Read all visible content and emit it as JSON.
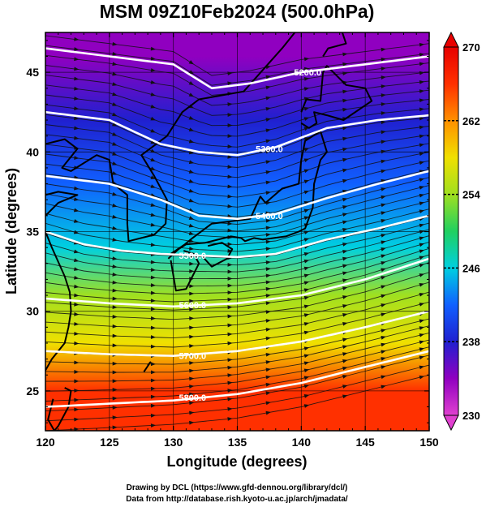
{
  "chart_data": {
    "type": "heatmap",
    "title": "MSM 09Z10Feb2024 (500.0hPa)",
    "xlabel": "Longitude (degrees)",
    "ylabel": "Latitude  (degrees)",
    "xlim": [
      120,
      150
    ],
    "ylim": [
      22.5,
      47.5
    ],
    "x_ticks": [
      120,
      125,
      130,
      135,
      140,
      145,
      150
    ],
    "y_ticks": [
      25,
      30,
      35,
      40,
      45
    ],
    "colorbar": {
      "range": [
        230,
        270
      ],
      "ticks": [
        230,
        238,
        246,
        254,
        262,
        270
      ],
      "extend": "both",
      "colors": [
        "#e040d0",
        "#9000c0",
        "#2020d0",
        "#1060ff",
        "#00d0e0",
        "#20d060",
        "#a0e020",
        "#f0e000",
        "#ff9000",
        "#ff3000",
        "#e80000"
      ]
    },
    "temperature_gradient": {
      "direction": "increasing-southward",
      "approx_bands": [
        {
          "lat": 46,
          "value": 232
        },
        {
          "lat": 42,
          "value": 236
        },
        {
          "lat": 38,
          "value": 241
        },
        {
          "lat": 34,
          "value": 247
        },
        {
          "lat": 31,
          "value": 252
        },
        {
          "lat": 28,
          "value": 258
        },
        {
          "lat": 25,
          "value": 264
        }
      ]
    },
    "height_contours": [
      {
        "label": "5200.0",
        "points": [
          [
            120,
            46.5
          ],
          [
            125,
            46
          ],
          [
            130,
            45.5
          ],
          [
            133,
            44
          ],
          [
            136,
            44.3
          ],
          [
            140,
            45
          ],
          [
            145,
            45.5
          ],
          [
            150,
            46
          ]
        ]
      },
      {
        "label": "5300.0",
        "points": [
          [
            120,
            42.5
          ],
          [
            125,
            42
          ],
          [
            129,
            40.5
          ],
          [
            132,
            40
          ],
          [
            135,
            39.8
          ],
          [
            138,
            40.3
          ],
          [
            142,
            41.5
          ],
          [
            146,
            42
          ],
          [
            150,
            42.3
          ]
        ]
      },
      {
        "label": "5400.0",
        "points": [
          [
            120,
            38.5
          ],
          [
            125,
            38
          ],
          [
            129,
            37
          ],
          [
            132,
            36
          ],
          [
            135,
            35.8
          ],
          [
            138,
            36.1
          ],
          [
            142,
            37.1
          ],
          [
            146,
            38
          ],
          [
            150,
            38.8
          ]
        ]
      },
      {
        "label": "5500.0",
        "points": [
          [
            120,
            35
          ],
          [
            123,
            34.2
          ],
          [
            126,
            33.8
          ],
          [
            129,
            33.6
          ],
          [
            132,
            33.5
          ],
          [
            135,
            33.4
          ],
          [
            138,
            33.6
          ],
          [
            142,
            34.5
          ],
          [
            146,
            35.2
          ],
          [
            150,
            36
          ]
        ]
      },
      {
        "label": "5600.0",
        "points": [
          [
            120,
            30.8
          ],
          [
            125,
            30.5
          ],
          [
            130,
            30.3
          ],
          [
            135,
            30.5
          ],
          [
            140,
            31
          ],
          [
            145,
            32
          ],
          [
            150,
            33.3
          ]
        ]
      },
      {
        "label": "5700.0",
        "points": [
          [
            120,
            27.5
          ],
          [
            125,
            27.3
          ],
          [
            130,
            27.2
          ],
          [
            135,
            27.5
          ],
          [
            140,
            28.1
          ],
          [
            145,
            29
          ],
          [
            150,
            30
          ]
        ]
      },
      {
        "label": "5800.0",
        "points": [
          [
            120,
            24
          ],
          [
            125,
            24.2
          ],
          [
            130,
            24.4
          ],
          [
            135,
            24.8
          ],
          [
            140,
            25.5
          ],
          [
            145,
            26.5
          ],
          [
            150,
            27.5
          ]
        ]
      }
    ],
    "contour_labels": [
      {
        "text": "5200.0",
        "lon": 140.5,
        "lat": 45.0
      },
      {
        "text": "5300.0",
        "lon": 137.5,
        "lat": 40.2
      },
      {
        "text": "5400.0",
        "lon": 137.5,
        "lat": 36.0
      },
      {
        "text": "5500.0",
        "lon": 131.5,
        "lat": 33.5
      },
      {
        "text": "5600.0",
        "lon": 131.5,
        "lat": 30.4
      },
      {
        "text": "5700.0",
        "lon": 131.5,
        "lat": 27.2
      },
      {
        "text": "5800.0",
        "lon": 131.5,
        "lat": 24.6
      }
    ],
    "wind": "westerly streamlines across the domain",
    "credits": [
      "Drawing by DCL (https://www.gfd-dennou.org/library/dcl/)",
      "Data from http://database.rish.kyoto-u.ac.jp/arch/jmadata/"
    ]
  }
}
